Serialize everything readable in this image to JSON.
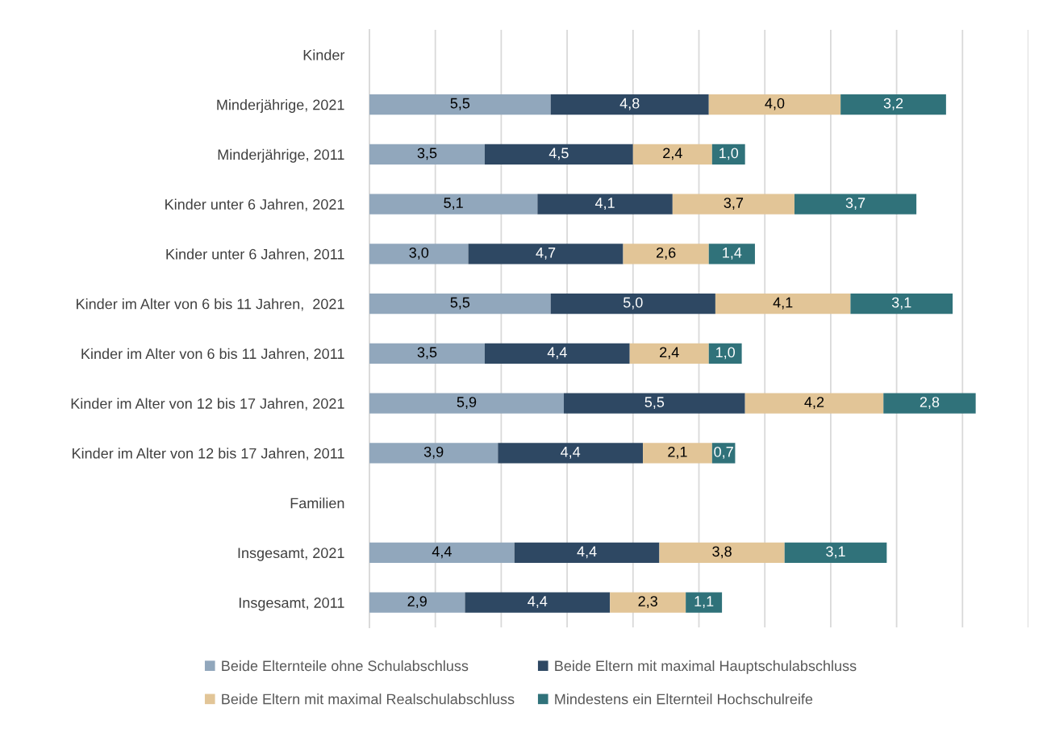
{
  "chart_data": {
    "type": "bar",
    "orientation": "horizontal",
    "stacked": true,
    "categories": [
      "Kinder",
      "Minderjährige, 2021",
      "Minderjährige, 2011",
      "Kinder unter 6 Jahren, 2021",
      "Kinder unter 6 Jahren, 2011",
      "Kinder im Alter von 6 bis 11 Jahren,  2021",
      "Kinder im Alter von 6 bis 11 Jahren, 2011",
      "Kinder im Alter von 12 bis 17 Jahren, 2021",
      "Kinder im Alter von 12 bis 17 Jahren, 2011",
      "Familien",
      "Insgesamt, 2021",
      "Insgesamt, 2011"
    ],
    "series": [
      {
        "name": "Beide Elternteile ohne Schulabschluss",
        "color": "#91a7bc",
        "values": [
          null,
          5.5,
          3.5,
          5.1,
          3.0,
          5.5,
          3.5,
          5.9,
          3.9,
          null,
          4.4,
          2.9
        ],
        "value_labels": [
          null,
          "5,5",
          "3,5",
          "5,1",
          "3,0",
          "5,5",
          "3,5",
          "5,9",
          "3,9",
          null,
          "4,4",
          "2,9"
        ]
      },
      {
        "name": "Beide Eltern mit maximal Hauptschulabschluss",
        "color": "#2e4863",
        "values": [
          null,
          4.8,
          4.5,
          4.1,
          4.7,
          5.0,
          4.4,
          5.5,
          4.4,
          null,
          4.4,
          4.4
        ],
        "value_labels": [
          null,
          "4,8",
          "4,5",
          "4,1",
          "4,7",
          "5,0",
          "4,4",
          "5,5",
          "4,4",
          null,
          "4,4",
          "4,4"
        ]
      },
      {
        "name": "Beide Eltern mit maximal Realschulabschluss",
        "color": "#e2c597",
        "values": [
          null,
          4.0,
          2.4,
          3.7,
          2.6,
          4.1,
          2.4,
          4.2,
          2.1,
          null,
          3.8,
          2.3
        ],
        "value_labels": [
          null,
          "4,0",
          "2,4",
          "3,7",
          "2,6",
          "4,1",
          "2,4",
          "4,2",
          "2,1",
          null,
          "3,8",
          "2,3"
        ]
      },
      {
        "name": "Mindestens ein Elternteil Hochschulreife",
        "color": "#30727a",
        "values": [
          null,
          3.2,
          1.0,
          3.7,
          1.4,
          3.1,
          1.0,
          2.8,
          0.7,
          null,
          3.1,
          1.1
        ],
        "value_labels": [
          null,
          "3,2",
          "1,0",
          "3,7",
          "1,4",
          "3,1",
          "1,0",
          "2,8",
          "0,7",
          null,
          "3,1",
          "1,1"
        ]
      }
    ],
    "xlim": [
      0,
      20
    ],
    "xticks": [
      {
        "value": 0,
        "label": null
      },
      {
        "value": 2,
        "label": null
      },
      {
        "value": 4,
        "label": null
      },
      {
        "value": 6,
        "label": null
      },
      {
        "value": 8,
        "label": null
      },
      {
        "value": 10,
        "label": null
      },
      {
        "value": 12,
        "label": null
      },
      {
        "value": 14,
        "label": null
      },
      {
        "value": 16,
        "label": null
      },
      {
        "value": 18,
        "label": null
      },
      {
        "value": 20,
        "label": null
      }
    ],
    "grid": "x",
    "legend": "bottom",
    "tick_labels": "y"
  }
}
